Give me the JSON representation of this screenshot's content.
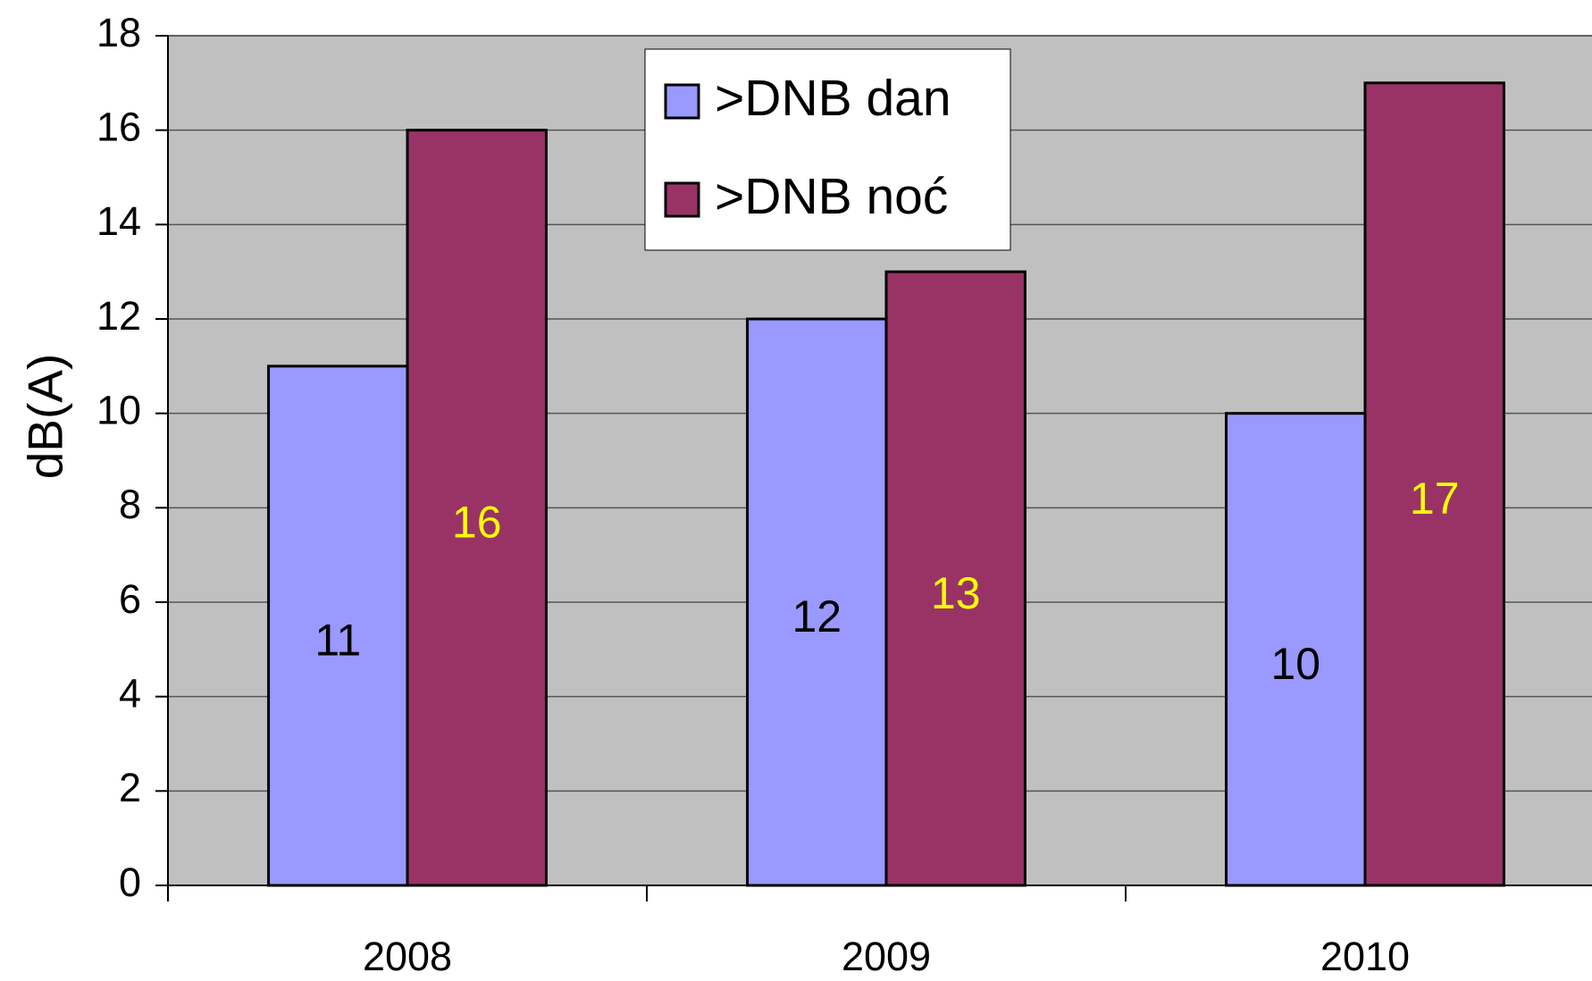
{
  "chart_data": {
    "type": "bar",
    "categories": [
      "2008",
      "2009",
      "2010"
    ],
    "series": [
      {
        "name": ">DNB dan",
        "color": "#9999ff",
        "label_color": "#000000",
        "values": [
          11,
          12,
          10
        ]
      },
      {
        "name": ">DNB noć",
        "color": "#993366",
        "label_color": "#ffff00",
        "values": [
          16,
          13,
          17
        ]
      }
    ],
    "ylabel": "dB(A)",
    "ylim": [
      0,
      18
    ],
    "yticks": [
      0,
      2,
      4,
      6,
      8,
      10,
      12,
      14,
      16,
      18
    ],
    "grid": true,
    "legend": "top",
    "background": "#c0c0c0"
  }
}
